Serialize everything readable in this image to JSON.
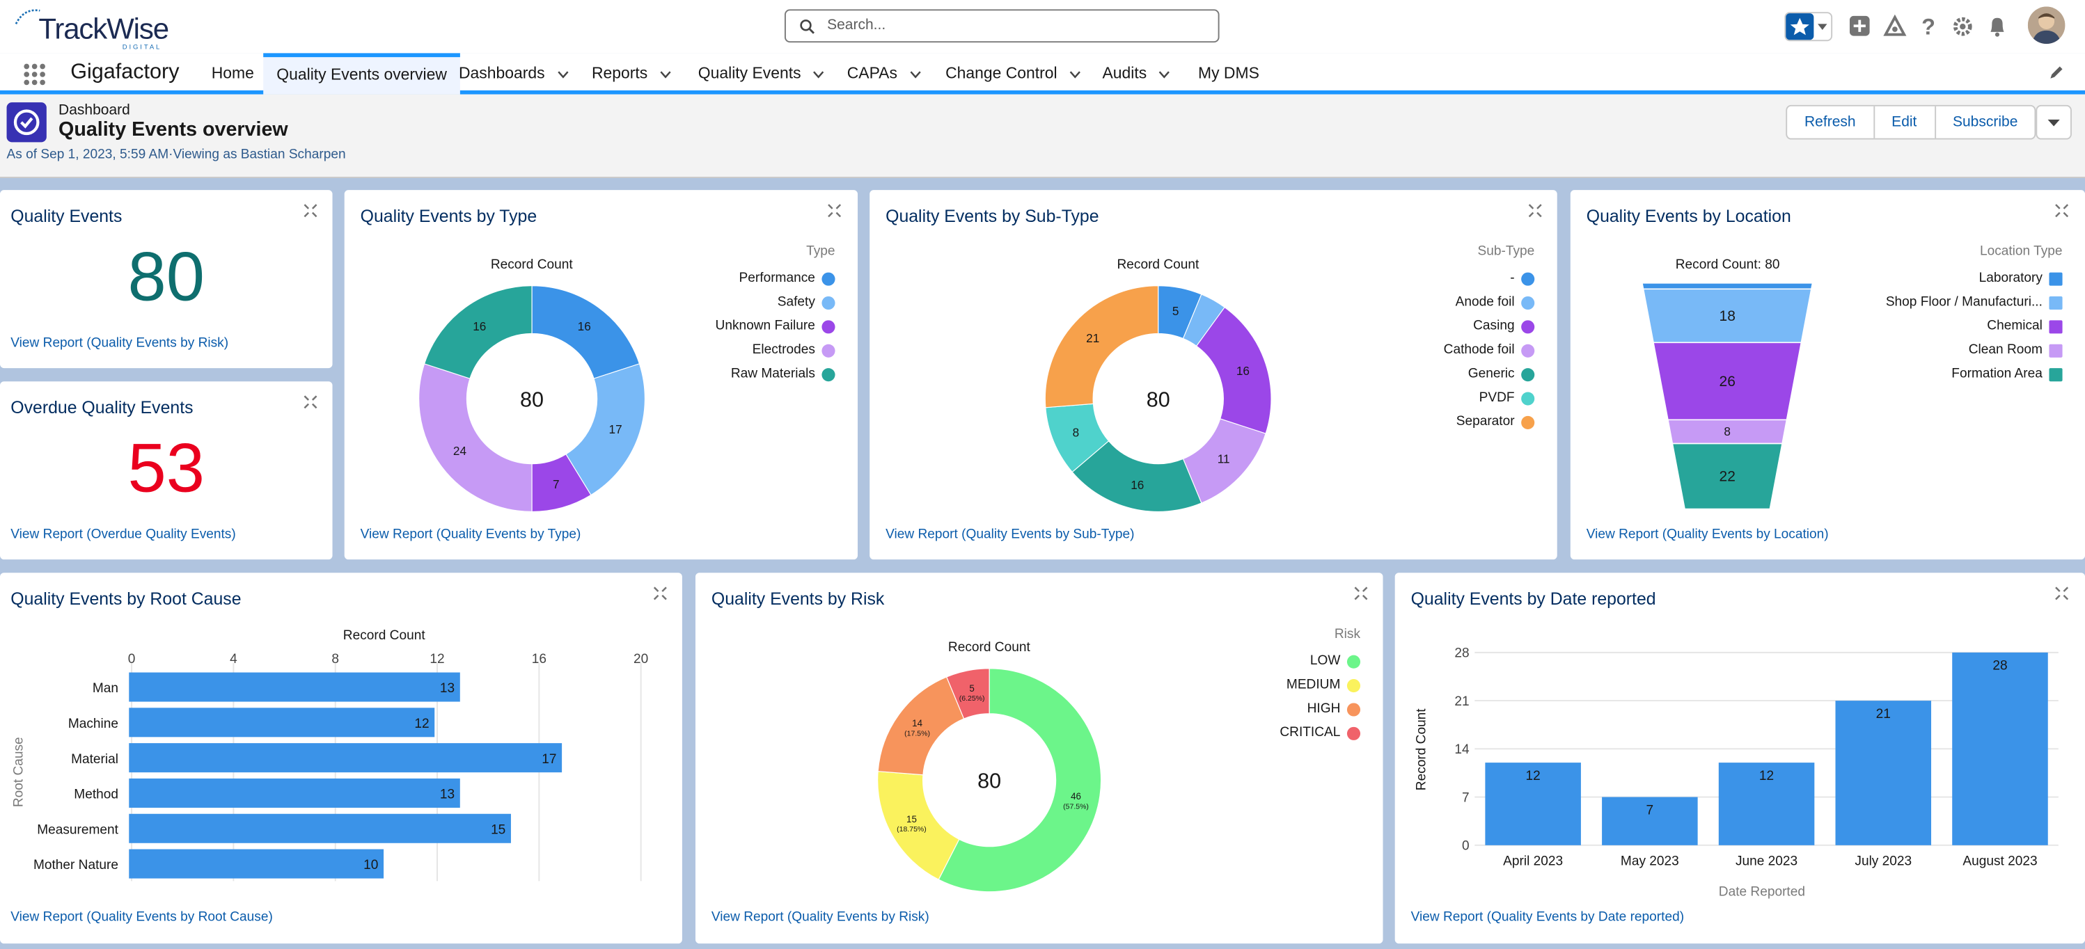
{
  "brand": {
    "name": "TrackWise",
    "sub": "DIGITAL"
  },
  "search": {
    "placeholder": "Search..."
  },
  "app": {
    "name": "Gigafactory"
  },
  "nav": {
    "tabs": [
      {
        "label": "Home",
        "dropdown": false
      },
      {
        "label": "Quality Events overview",
        "dropdown": false,
        "active": true
      },
      {
        "label": "Dashboards",
        "dropdown": true
      },
      {
        "label": "Reports",
        "dropdown": true
      },
      {
        "label": "Quality Events",
        "dropdown": true
      },
      {
        "label": "CAPAs",
        "dropdown": true
      },
      {
        "label": "Change Control",
        "dropdown": true
      },
      {
        "label": "Audits",
        "dropdown": true
      },
      {
        "label": "My DMS",
        "dropdown": false
      }
    ]
  },
  "header": {
    "type": "Dashboard",
    "title": "Quality Events overview",
    "as_of": "As of Sep 1, 2023, 5:59 AM·Viewing as Bastian Scharpen",
    "buttons": {
      "refresh": "Refresh",
      "edit": "Edit",
      "subscribe": "Subscribe"
    }
  },
  "colors": {
    "accent": "#1b96ff",
    "bar": "#3b93e8",
    "metric_teal": "#0e6e6e",
    "metric_red": "#ea001e"
  },
  "cards": {
    "quality_events": {
      "title": "Quality Events",
      "value": "80",
      "link": "View Report (Quality Events by Risk)"
    },
    "overdue": {
      "title": "Overdue Quality Events",
      "value": "53",
      "link": "View Report (Overdue Quality Events)"
    },
    "by_type": {
      "title": "Quality Events by Type",
      "link": "View Report (Quality Events by Type)"
    },
    "by_subtype": {
      "title": "Quality Events by Sub-Type",
      "link": "View Report (Quality Events by Sub-Type)"
    },
    "by_location": {
      "title": "Quality Events by Location",
      "link": "View Report (Quality Events by Location)"
    },
    "by_root_cause": {
      "title": "Quality Events by Root Cause",
      "link": "View Report (Quality Events by Root Cause)"
    },
    "by_risk": {
      "title": "Quality Events by Risk",
      "link": "View Report (Quality Events by Risk)"
    },
    "by_date": {
      "title": "Quality Events by Date reported",
      "link": "View Report (Quality Events by Date reported)"
    }
  },
  "chart_data": [
    {
      "id": "type",
      "type": "pie",
      "title": "Record Count",
      "center_label": "80",
      "legend_title": "Type",
      "categories": [
        "Performance",
        "Safety",
        "Unknown Failure",
        "Electrodes",
        "Raw Materials"
      ],
      "values": [
        16,
        17,
        7,
        24,
        16
      ],
      "colors": [
        "#3b93e8",
        "#78b9f7",
        "#9b47e8",
        "#c69af5",
        "#27a59a"
      ]
    },
    {
      "id": "subtype",
      "type": "pie",
      "title": "Record Count",
      "center_label": "80",
      "legend_title": "Sub-Type",
      "categories": [
        "-",
        "Anode foil",
        "Casing",
        "Cathode foil",
        "Generic",
        "PVDF",
        "Separator"
      ],
      "values": [
        5,
        3,
        16,
        11,
        16,
        8,
        21
      ],
      "colors": [
        "#3b93e8",
        "#78b9f7",
        "#9b47e8",
        "#c69af5",
        "#27a59a",
        "#4fd2cc",
        "#f7a14b"
      ]
    },
    {
      "id": "location",
      "type": "funnel",
      "title": "Record Count: 80",
      "legend_title": "Location Type",
      "categories": [
        "Laboratory",
        "Shop Floor / Manufacturi...",
        "Chemical",
        "Clean Room",
        "Formation Area"
      ],
      "values": [
        2,
        18,
        26,
        8,
        22
      ],
      "labels": [
        "",
        "18",
        "26",
        "8",
        "22"
      ],
      "colors": [
        "#3b93e8",
        "#78b9f7",
        "#9b47e8",
        "#c69af5",
        "#27a59a"
      ]
    },
    {
      "id": "root_cause",
      "type": "bar",
      "orientation": "horizontal",
      "title": "Record Count",
      "ylabel": "Root Cause",
      "categories": [
        "Man",
        "Machine",
        "Material",
        "Method",
        "Measurement",
        "Mother Nature"
      ],
      "values": [
        13,
        12,
        17,
        13,
        15,
        10
      ],
      "xlim": [
        0,
        20
      ],
      "ticks": [
        "0",
        "4",
        "8",
        "12",
        "16",
        "20"
      ],
      "color": "#3b93e8"
    },
    {
      "id": "risk",
      "type": "pie",
      "title": "Record Count",
      "center_label": "80",
      "legend_title": "Risk",
      "categories": [
        "LOW",
        "MEDIUM",
        "HIGH",
        "CRITICAL"
      ],
      "values": [
        46,
        15,
        14,
        5
      ],
      "value_labels": [
        "46",
        "15",
        "14",
        "5"
      ],
      "pct_labels": [
        "(57.5%)",
        "(18.75%)",
        "(17.5%)",
        "(6.25%)"
      ],
      "colors": [
        "#6cf58a",
        "#faf25d",
        "#f7945c",
        "#f0626a"
      ]
    },
    {
      "id": "date",
      "type": "bar",
      "orientation": "vertical",
      "xlabel": "Date Reported",
      "ylabel": "Record Count",
      "categories": [
        "April 2023",
        "May 2023",
        "June 2023",
        "July 2023",
        "August 2023"
      ],
      "values": [
        12,
        7,
        12,
        21,
        28
      ],
      "ylim": [
        0,
        28
      ],
      "ticks": [
        "0",
        "7",
        "14",
        "21",
        "28"
      ],
      "color": "#3b93e8"
    }
  ]
}
